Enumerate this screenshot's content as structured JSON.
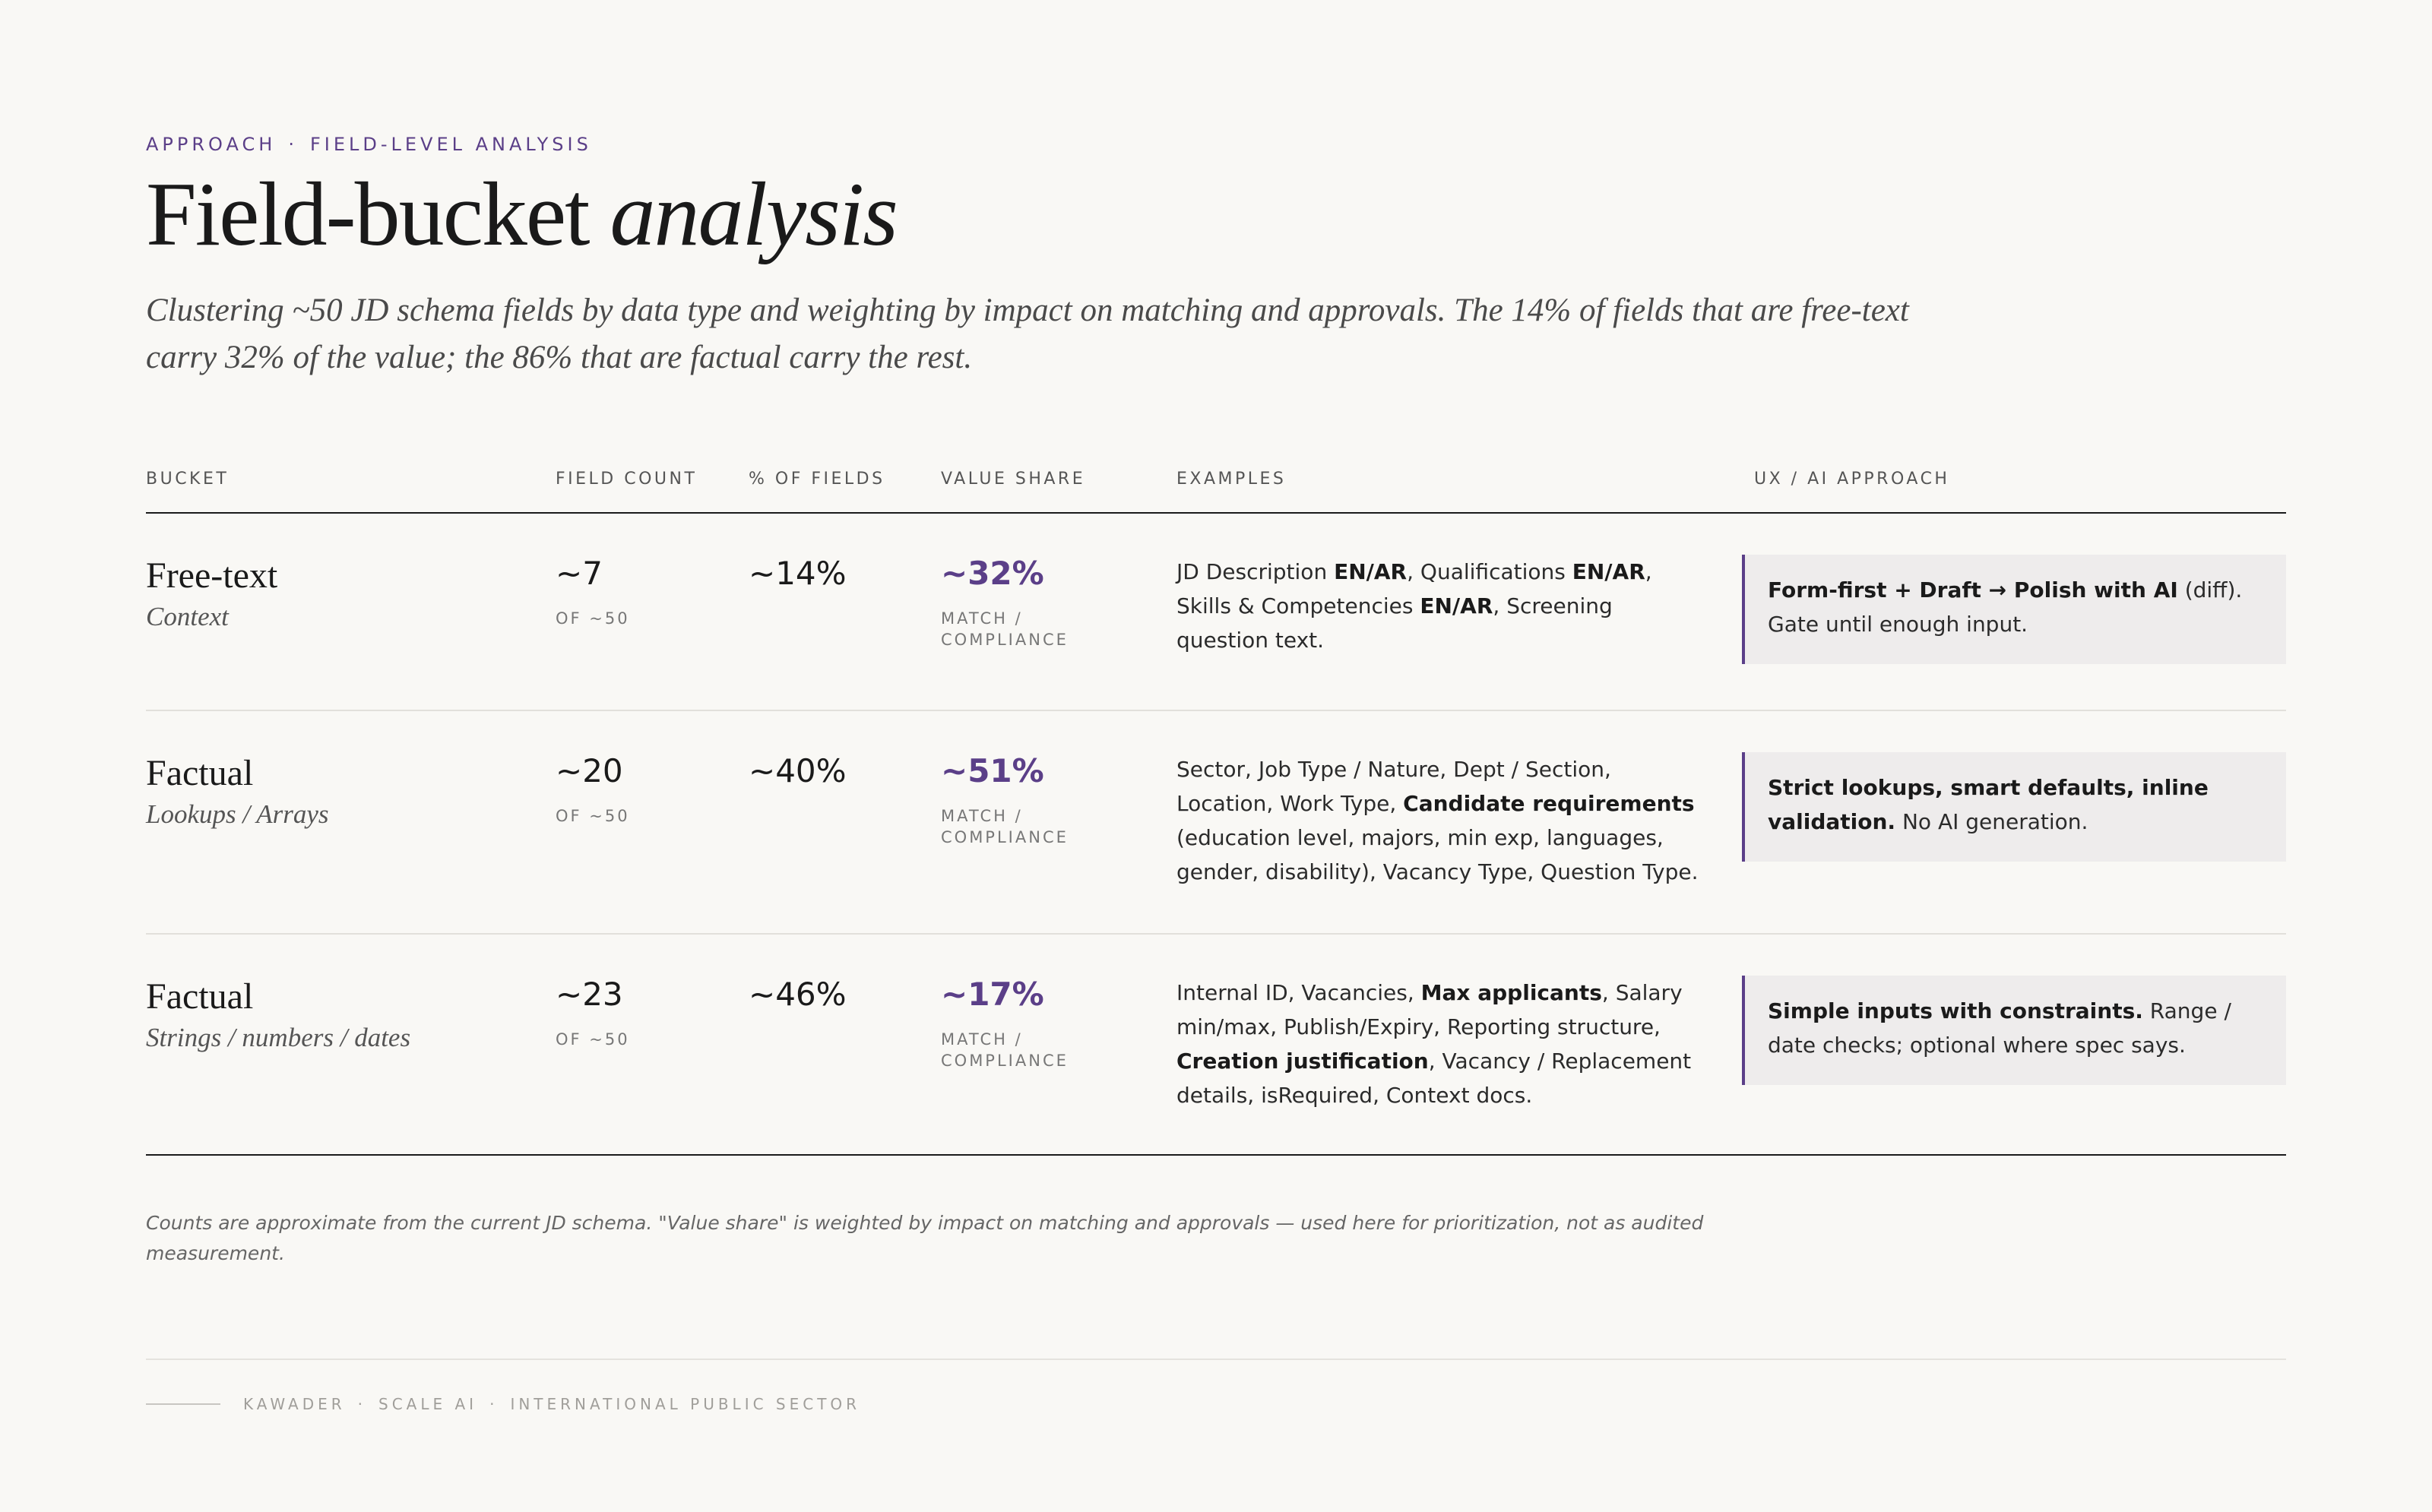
{
  "eyebrow": {
    "left": "APPROACH",
    "sep": "·",
    "right": "FIELD-LEVEL ANALYSIS"
  },
  "title": {
    "plain": "Field-bucket ",
    "italic": "analysis"
  },
  "subtitle": "Clustering ~50 JD schema fields by data type and weighting by impact on matching and approvals. The 14% of fields that are free-text carry 32% of the value; the 86% that are factual carry the rest.",
  "table": {
    "headers": {
      "bucket": "BUCKET",
      "field_count": "FIELD COUNT",
      "pct_fields": "% OF FIELDS",
      "value_share": "VALUE SHARE",
      "examples": "EXAMPLES",
      "approach": "UX / AI APPROACH"
    },
    "rows": [
      {
        "bucket": "Free-text",
        "bucket_sub": "Context",
        "field_count": "~7",
        "field_count_sub": "OF ~50",
        "pct_fields": "~14%",
        "value_share": "~32%",
        "value_share_sub": "MATCH / COMPLIANCE",
        "examples": [
          {
            "t": "JD Description "
          },
          {
            "t": "EN/AR",
            "b": true
          },
          {
            "t": ", Qualifications "
          },
          {
            "t": "EN/AR",
            "b": true
          },
          {
            "t": ", Skills & Competencies "
          },
          {
            "t": "EN/AR",
            "b": true
          },
          {
            "t": ", Screening question text."
          }
        ],
        "approach": [
          {
            "t": "Form-first + Draft → Polish with AI",
            "b": true
          },
          {
            "t": " (diff). Gate until enough input."
          }
        ]
      },
      {
        "bucket": "Factual",
        "bucket_sub": "Lookups / Arrays",
        "field_count": "~20",
        "field_count_sub": "OF ~50",
        "pct_fields": "~40%",
        "value_share": "~51%",
        "value_share_sub": "MATCH / COMPLIANCE",
        "examples": [
          {
            "t": "Sector, Job Type / Nature, Dept / Section, Location, Work Type, "
          },
          {
            "t": "Candidate requirements",
            "b": true
          },
          {
            "t": " (education level, majors, min exp, languages, gender, disability), Vacancy Type, Question Type."
          }
        ],
        "approach": [
          {
            "t": "Strict lookups, smart defaults, inline validation.",
            "b": true
          },
          {
            "t": " No AI generation."
          }
        ]
      },
      {
        "bucket": "Factual",
        "bucket_sub": "Strings / numbers / dates",
        "field_count": "~23",
        "field_count_sub": "OF ~50",
        "pct_fields": "~46%",
        "value_share": "~17%",
        "value_share_sub": "MATCH / COMPLIANCE",
        "examples": [
          {
            "t": "Internal ID, Vacancies, "
          },
          {
            "t": "Max applicants",
            "b": true
          },
          {
            "t": ", Salary min/max, Publish/Expiry, Reporting structure, "
          },
          {
            "t": "Creation justification",
            "b": true
          },
          {
            "t": ", Vacancy / Replacement details, isRequired, Context docs."
          }
        ],
        "approach": [
          {
            "t": "Simple inputs with constraints.",
            "b": true
          },
          {
            "t": " Range / date checks; optional where spec says."
          }
        ]
      }
    ]
  },
  "footnote": "Counts are approximate from the current JD schema. \"Value share\" is weighted by impact on matching and approvals — used here for prioritization, not as audited measurement.",
  "footer": {
    "a": "KAWADER",
    "b": "SCALE AI",
    "c": "INTERNATIONAL PUBLIC SECTOR",
    "sep": "·"
  },
  "colors": {
    "accent": "#5b3f88",
    "background": "#f9f8f5",
    "callout_bg": "#eeecec"
  }
}
